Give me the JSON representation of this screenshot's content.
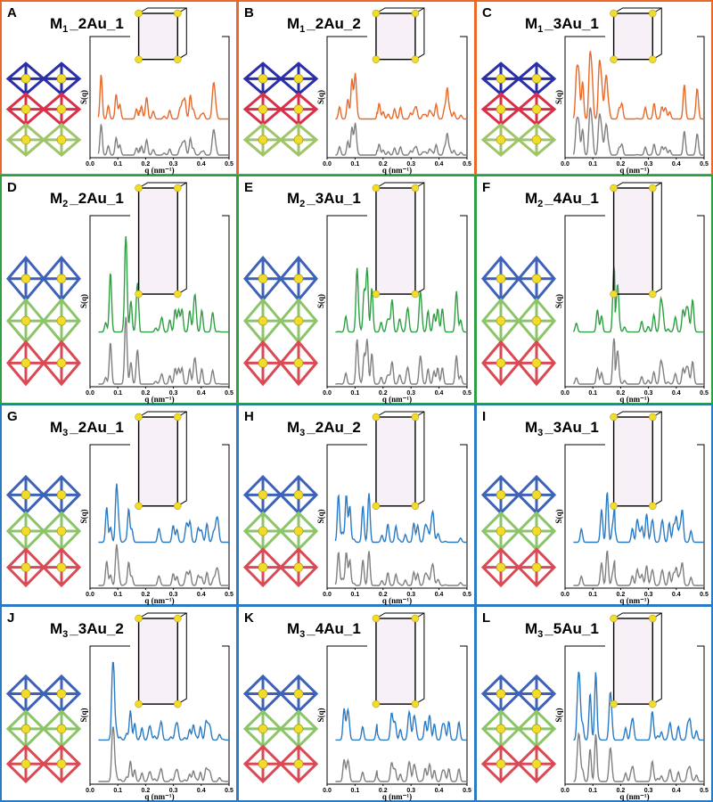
{
  "axis": {
    "xlabel": "q (nm⁻¹)",
    "ylabel": "S(q)",
    "xticks": [
      {
        "value": 0,
        "label": "0.0"
      },
      0.1,
      0.2,
      0.3,
      0.4,
      0.5
    ],
    "xlim": [
      0,
      0.5
    ]
  },
  "panels": [
    {
      "letter": "A",
      "base": "M",
      "sub": "1",
      "rest": "_2Au_1",
      "color": "#e8692a"
    },
    {
      "letter": "B",
      "base": "M",
      "sub": "1",
      "rest": "_2Au_2",
      "color": "#e8692a"
    },
    {
      "letter": "C",
      "base": "M",
      "sub": "1",
      "rest": "_3Au_1",
      "color": "#e8692a"
    },
    {
      "letter": "D",
      "base": "M",
      "sub": "2",
      "rest": "_2Au_1",
      "color": "#2ea043"
    },
    {
      "letter": "E",
      "base": "M",
      "sub": "2",
      "rest": "_3Au_1",
      "color": "#2ea043"
    },
    {
      "letter": "F",
      "base": "M",
      "sub": "2",
      "rest": "_4Au_1",
      "color": "#2ea043"
    },
    {
      "letter": "G",
      "base": "M",
      "sub": "3",
      "rest": "_2Au_1",
      "color": "#2b7bc4"
    },
    {
      "letter": "H",
      "base": "M",
      "sub": "3",
      "rest": "_2Au_2",
      "color": "#2b7bc4"
    },
    {
      "letter": "I",
      "base": "M",
      "sub": "3",
      "rest": "_3Au_1",
      "color": "#2b7bc4"
    },
    {
      "letter": "J",
      "base": "M",
      "sub": "3",
      "rest": "_3Au_2",
      "color": "#2b7bc4"
    },
    {
      "letter": "K",
      "base": "M",
      "sub": "3",
      "rest": "_4Au_1",
      "color": "#2b7bc4"
    },
    {
      "letter": "L",
      "base": "M",
      "sub": "3",
      "rest": "_5Au_1",
      "color": "#2b7bc4"
    }
  ]
}
